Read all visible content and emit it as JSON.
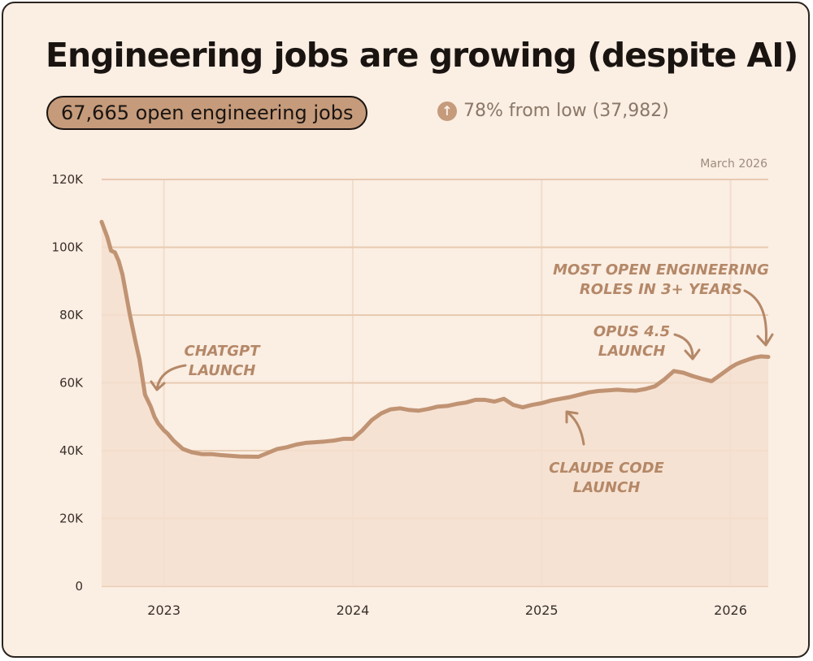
{
  "header": {
    "title": "Engineering jobs are growing (despite AI)",
    "pill": "67,665 open engineering jobs",
    "delta_icon": "arrow-up-icon",
    "delta": "78% from low (37,982)"
  },
  "colors": {
    "background": "#fbeee3",
    "accent": "#c59b7b",
    "line": "#c09373",
    "area": "#f4dfcf",
    "grid": "#e8cbb2",
    "text": "#1a1411"
  },
  "chart_data": {
    "type": "area",
    "title": "Engineering jobs are growing (despite AI)",
    "note": "March 2026",
    "xlabel": "",
    "ylabel": "",
    "ylim": [
      0,
      120000
    ],
    "xlim": [
      2022.67,
      2026.2
    ],
    "y_ticks": [
      {
        "value": 0,
        "label": "0"
      },
      {
        "value": 20000,
        "label": "20K"
      },
      {
        "value": 40000,
        "label": "40K"
      },
      {
        "value": 60000,
        "label": "60K"
      },
      {
        "value": 80000,
        "label": "80K"
      },
      {
        "value": 100000,
        "label": "100K"
      },
      {
        "value": 120000,
        "label": "120K"
      }
    ],
    "x_ticks": [
      {
        "value": 2023,
        "label": "2023"
      },
      {
        "value": 2024,
        "label": "2024"
      },
      {
        "value": 2025,
        "label": "2025"
      },
      {
        "value": 2026,
        "label": "2026"
      }
    ],
    "series": [
      {
        "name": "Open engineering jobs",
        "x": [
          2022.67,
          2022.7,
          2022.72,
          2022.74,
          2022.76,
          2022.78,
          2022.8,
          2022.82,
          2022.85,
          2022.87,
          2022.9,
          2022.93,
          2022.95,
          2022.97,
          2023.0,
          2023.02,
          2023.05,
          2023.1,
          2023.15,
          2023.2,
          2023.25,
          2023.3,
          2023.4,
          2023.5,
          2023.6,
          2023.65,
          2023.7,
          2023.75,
          2023.8,
          2023.85,
          2023.9,
          2023.95,
          2024.0,
          2024.05,
          2024.1,
          2024.15,
          2024.2,
          2024.25,
          2024.3,
          2024.35,
          2024.4,
          2024.45,
          2024.5,
          2024.55,
          2024.6,
          2024.65,
          2024.7,
          2024.75,
          2024.8,
          2024.85,
          2024.9,
          2024.95,
          2025.0,
          2025.05,
          2025.1,
          2025.15,
          2025.2,
          2025.25,
          2025.3,
          2025.35,
          2025.4,
          2025.45,
          2025.5,
          2025.55,
          2025.6,
          2025.65,
          2025.7,
          2025.75,
          2025.8,
          2025.85,
          2025.9,
          2025.95,
          2026.0,
          2026.03,
          2026.06,
          2026.1,
          2026.13,
          2026.16,
          2026.2
        ],
        "values": [
          107500,
          103000,
          99000,
          98500,
          96000,
          92000,
          86000,
          80000,
          72000,
          67000,
          56500,
          53000,
          50000,
          48000,
          46000,
          45000,
          43000,
          40500,
          39500,
          39000,
          39000,
          38700,
          38300,
          38200,
          40500,
          41000,
          41800,
          42300,
          42500,
          42700,
          43000,
          43500,
          43500,
          46000,
          49000,
          51000,
          52200,
          52500,
          52000,
          51800,
          52300,
          53000,
          53200,
          53800,
          54200,
          55000,
          55000,
          54500,
          55300,
          53500,
          52800,
          53500,
          54000,
          54800,
          55300,
          55800,
          56500,
          57200,
          57600,
          57800,
          58000,
          57800,
          57700,
          58200,
          59000,
          61000,
          63500,
          63000,
          62000,
          61200,
          60500,
          62500,
          64500,
          65500,
          66200,
          67000,
          67500,
          67800,
          67665
        ]
      }
    ],
    "annotations": [
      {
        "name": "chatgpt-launch",
        "lines": [
          "CHATGPT",
          "LAUNCH"
        ]
      },
      {
        "name": "claude-code-launch",
        "lines": [
          "CLAUDE CODE",
          "LAUNCH"
        ]
      },
      {
        "name": "opus-launch",
        "lines": [
          "OPUS 4.5",
          "LAUNCH"
        ]
      },
      {
        "name": "most-open-roles",
        "lines": [
          "MOST OPEN ENGINEERING",
          "ROLES IN 3+ YEARS"
        ]
      }
    ]
  }
}
